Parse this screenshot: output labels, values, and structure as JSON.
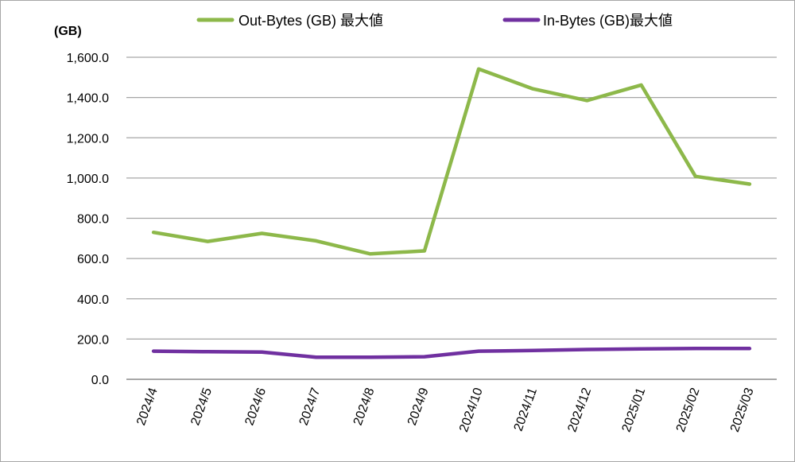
{
  "chart_data": {
    "type": "line",
    "unit_label": "(GB)",
    "categories": [
      "2024/4",
      "2024/5",
      "2024/6",
      "2024/7",
      "2024/8",
      "2024/9",
      "2024/10",
      "2024/11",
      "2024/12",
      "2025/01",
      "2025/02",
      "2025/03"
    ],
    "series": [
      {
        "name": "Out-Bytes (GB) 最大値",
        "color": "#8db84a",
        "values": [
          730,
          685,
          725,
          688,
          623,
          638,
          1542,
          1443,
          1385,
          1462,
          1008,
          970
        ]
      },
      {
        "name": "In-Bytes (GB)最大値",
        "color": "#7030a0",
        "values": [
          140,
          137,
          135,
          110,
          110,
          112,
          140,
          143,
          148,
          151,
          153,
          153
        ]
      }
    ],
    "y_ticks": [
      "0.0",
      "200.0",
      "400.0",
      "600.0",
      "800.0",
      "1,000.0",
      "1,200.0",
      "1,400.0",
      "1,600.0"
    ],
    "ylim": [
      0,
      1600
    ],
    "grid": true,
    "legend": "top"
  }
}
